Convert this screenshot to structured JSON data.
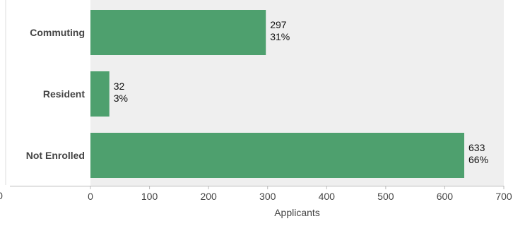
{
  "chart_data": {
    "type": "bar",
    "orientation": "horizontal",
    "categories": [
      "Commuting",
      "Resident",
      "Not Enrolled"
    ],
    "values": [
      297,
      32,
      633
    ],
    "percent_labels": [
      "31%",
      "3%",
      "66%"
    ],
    "xlabel": "Applicants",
    "ylabel": "",
    "xlim": [
      0,
      700
    ],
    "xticks": [
      0,
      100,
      200,
      300,
      400,
      500,
      600,
      700
    ],
    "grid": false,
    "legend": "none"
  },
  "colors": {
    "bar": "#4ea06e",
    "plot_background": "#efefef",
    "axis_line": "#bbbbbb",
    "left_panel_border": "#dddddd"
  },
  "left_axis_stub_label": "0"
}
